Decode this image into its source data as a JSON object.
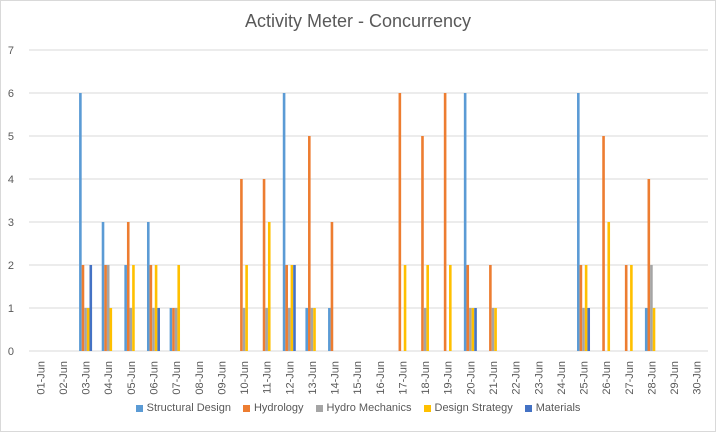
{
  "chart_data": {
    "type": "bar",
    "title": "Activity Meter - Concurrency",
    "xlabel": "",
    "ylabel": "",
    "ylim": [
      0,
      7
    ],
    "yticks": [
      0,
      1,
      2,
      3,
      4,
      5,
      6,
      7
    ],
    "grid": true,
    "legend_position": "bottom",
    "categories": [
      "01-Jun",
      "02-Jun",
      "03-Jun",
      "04-Jun",
      "05-Jun",
      "06-Jun",
      "07-Jun",
      "08-Jun",
      "09-Jun",
      "10-Jun",
      "11-Jun",
      "12-Jun",
      "13-Jun",
      "14-Jun",
      "15-Jun",
      "16-Jun",
      "17-Jun",
      "18-Jun",
      "19-Jun",
      "20-Jun",
      "21-Jun",
      "22-Jun",
      "23-Jun",
      "24-Jun",
      "25-Jun",
      "26-Jun",
      "27-Jun",
      "28-Jun",
      "29-Jun",
      "30-Jun"
    ],
    "series": [
      {
        "name": "Structural Design",
        "color": "#5b9bd5",
        "values": [
          0,
          0,
          6,
          3,
          2,
          3,
          1,
          0,
          0,
          0,
          0,
          6,
          1,
          1,
          0,
          0,
          0,
          0,
          0,
          6,
          0,
          0,
          0,
          0,
          6,
          0,
          0,
          1,
          0,
          0
        ]
      },
      {
        "name": "Hydrology",
        "color": "#ed7d31",
        "values": [
          0,
          0,
          2,
          2,
          3,
          2,
          1,
          0,
          0,
          4,
          4,
          2,
          5,
          3,
          0,
          0,
          6,
          5,
          6,
          2,
          2,
          0,
          0,
          0,
          2,
          5,
          2,
          4,
          0,
          0
        ]
      },
      {
        "name": "Hydro Mechanics",
        "color": "#a5a5a5",
        "values": [
          0,
          0,
          1,
          2,
          1,
          1,
          1,
          0,
          0,
          1,
          1,
          1,
          1,
          0,
          0,
          0,
          0,
          1,
          0,
          1,
          1,
          0,
          0,
          0,
          1,
          0,
          0,
          2,
          0,
          0
        ]
      },
      {
        "name": "Design Strategy",
        "color": "#ffc000",
        "values": [
          0,
          0,
          1,
          1,
          2,
          2,
          2,
          0,
          0,
          2,
          3,
          2,
          1,
          0,
          0,
          0,
          2,
          2,
          2,
          1,
          1,
          0,
          0,
          0,
          2,
          3,
          2,
          1,
          0,
          0
        ]
      },
      {
        "name": "Materials",
        "color": "#4472c4",
        "values": [
          0,
          0,
          2,
          0,
          0,
          1,
          0,
          0,
          0,
          0,
          0,
          2,
          0,
          0,
          0,
          0,
          0,
          0,
          0,
          1,
          0,
          0,
          0,
          0,
          1,
          0,
          0,
          0,
          0,
          0
        ]
      }
    ]
  }
}
